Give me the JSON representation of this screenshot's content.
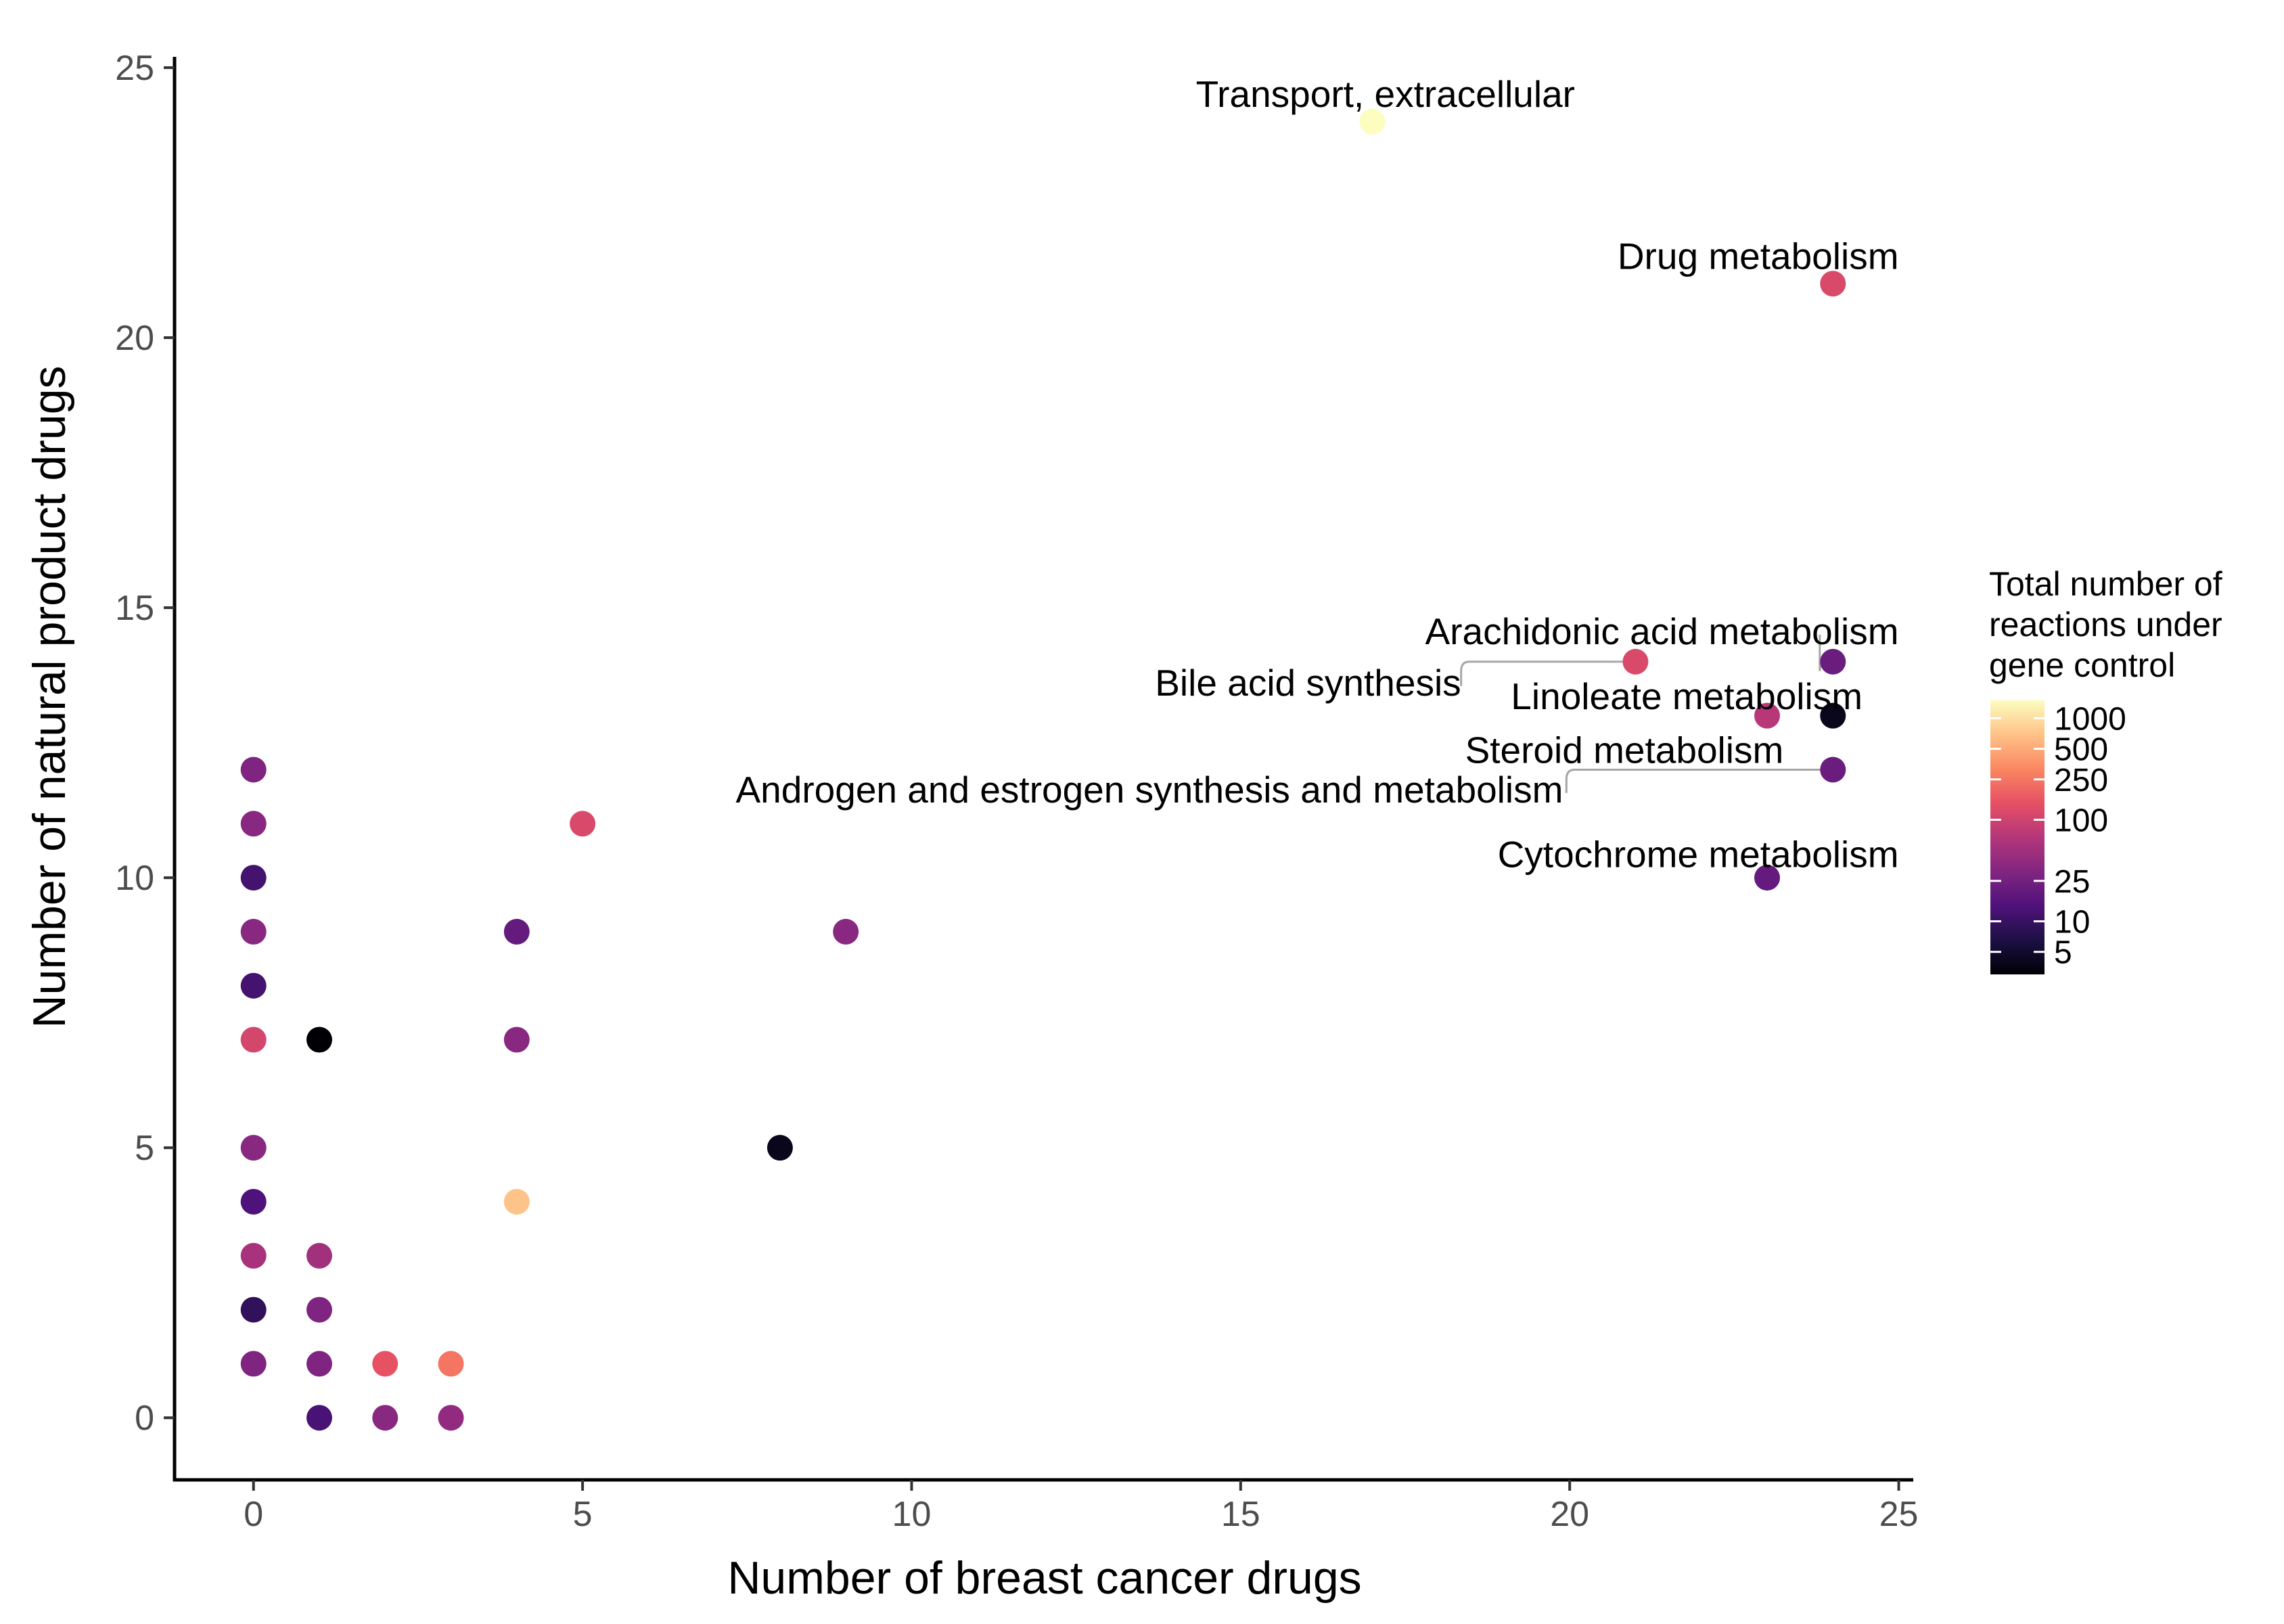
{
  "chart_data": {
    "type": "scatter",
    "title": "",
    "xlabel": "Number of breast cancer drugs",
    "ylabel": "Number of natural product drugs",
    "xlim": [
      -1.2,
      25.2
    ],
    "ylim": [
      -1.15,
      25.2
    ],
    "xticks": [
      0,
      5,
      10,
      15,
      20,
      25
    ],
    "yticks": [
      0,
      5,
      10,
      15,
      20,
      25
    ],
    "xtick_labels": [
      "0",
      "5",
      "10",
      "15",
      "20",
      "25"
    ],
    "ytick_labels": [
      "0",
      "5",
      "10",
      "15",
      "20",
      "25"
    ],
    "grid": false,
    "color_scale": {
      "name": "magma",
      "transform": "log10",
      "domain": [
        3,
        1500
      ],
      "title_lines": [
        "Total number of",
        "reactions under",
        "gene control"
      ],
      "breaks": [
        1000,
        500,
        250,
        100,
        25,
        10,
        5
      ],
      "break_labels": [
        "1000",
        "500",
        "250",
        "100",
        "25",
        "10",
        "5"
      ],
      "legend_position": "right"
    },
    "points": [
      {
        "x": 17,
        "y": 24,
        "reactions": 1500
      },
      {
        "x": 24,
        "y": 21,
        "reactions": 120
      },
      {
        "x": 24,
        "y": 14,
        "reactions": 22
      },
      {
        "x": 21,
        "y": 14,
        "reactions": 120
      },
      {
        "x": 23,
        "y": 13,
        "reactions": 70
      },
      {
        "x": 24,
        "y": 13,
        "reactions": 4
      },
      {
        "x": 24,
        "y": 12,
        "reactions": 22
      },
      {
        "x": 23,
        "y": 10,
        "reactions": 20
      },
      {
        "x": 0,
        "y": 12,
        "reactions": 30
      },
      {
        "x": 0,
        "y": 11,
        "reactions": 35
      },
      {
        "x": 0,
        "y": 10,
        "reactions": 12
      },
      {
        "x": 0,
        "y": 9,
        "reactions": 35
      },
      {
        "x": 0,
        "y": 8,
        "reactions": 12
      },
      {
        "x": 0,
        "y": 7,
        "reactions": 110
      },
      {
        "x": 0,
        "y": 5,
        "reactions": 35
      },
      {
        "x": 0,
        "y": 4,
        "reactions": 14
      },
      {
        "x": 0,
        "y": 3,
        "reactions": 55
      },
      {
        "x": 0,
        "y": 2,
        "reactions": 9
      },
      {
        "x": 0,
        "y": 1,
        "reactions": 30
      },
      {
        "x": 1,
        "y": 7,
        "reactions": 3
      },
      {
        "x": 1,
        "y": 3,
        "reactions": 50
      },
      {
        "x": 1,
        "y": 2,
        "reactions": 30
      },
      {
        "x": 1,
        "y": 1,
        "reactions": 30
      },
      {
        "x": 1,
        "y": 0,
        "reactions": 13
      },
      {
        "x": 2,
        "y": 1,
        "reactions": 150
      },
      {
        "x": 2,
        "y": 0,
        "reactions": 35
      },
      {
        "x": 3,
        "y": 1,
        "reactions": 250
      },
      {
        "x": 3,
        "y": 0,
        "reactions": 40
      },
      {
        "x": 4,
        "y": 9,
        "reactions": 20
      },
      {
        "x": 4,
        "y": 7,
        "reactions": 35
      },
      {
        "x": 4,
        "y": 4,
        "reactions": 700
      },
      {
        "x": 5,
        "y": 11,
        "reactions": 120
      },
      {
        "x": 8,
        "y": 5,
        "reactions": 4
      },
      {
        "x": 9,
        "y": 9,
        "reactions": 35
      }
    ],
    "annotations": [
      {
        "text": "Transport, extracellular",
        "point_x": 17,
        "point_y": 24,
        "anchor": "middle",
        "label_x": 17.2,
        "label_y": 24.5,
        "leader": false
      },
      {
        "text": "Drug metabolism",
        "point_x": 24,
        "point_y": 21,
        "anchor": "end",
        "label_x": 25,
        "label_y": 21.5,
        "leader": false
      },
      {
        "text": "Arachidonic acid metabolism",
        "point_x": 24,
        "point_y": 14,
        "anchor": "end",
        "label_x": 25,
        "label_y": 14.55,
        "leader": true,
        "leader_corner_x": 23.8
      },
      {
        "text": "Bile acid synthesis",
        "point_x": 21,
        "point_y": 14,
        "anchor": "end",
        "label_x": 18.35,
        "label_y": 13.6,
        "leader": true,
        "leader_corner_x": 18.35
      },
      {
        "text": "Linoleate metabolism",
        "point_x": 23,
        "point_y": 13,
        "anchor": "end",
        "label_x": 24.45,
        "label_y": 13.35,
        "leader": false
      },
      {
        "text": "Steroid metabolism",
        "point_x": 24,
        "point_y": 12,
        "anchor": "end",
        "label_x": 23.25,
        "label_y": 12.35,
        "leader": false
      },
      {
        "text": "Androgen and estrogen synthesis and metabolism",
        "point_x": 24,
        "point_y": 12,
        "anchor": "end",
        "label_x": 19.9,
        "label_y": 11.62,
        "leader": true,
        "leader_corner_x": 19.95
      },
      {
        "text": "Cytochrome metabolism",
        "point_x": 23,
        "point_y": 10,
        "anchor": "end",
        "label_x": 25,
        "label_y": 10.42,
        "leader": false
      }
    ]
  }
}
